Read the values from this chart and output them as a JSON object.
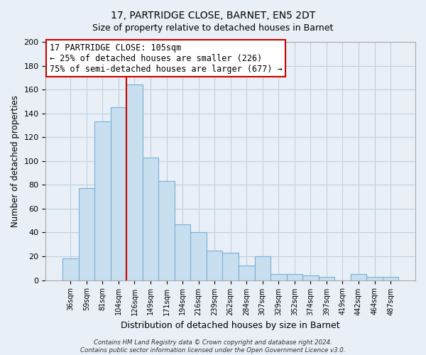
{
  "title": "17, PARTRIDGE CLOSE, BARNET, EN5 2DT",
  "subtitle": "Size of property relative to detached houses in Barnet",
  "xlabel": "Distribution of detached houses by size in Barnet",
  "ylabel": "Number of detached properties",
  "bar_labels": [
    "36sqm",
    "59sqm",
    "81sqm",
    "104sqm",
    "126sqm",
    "149sqm",
    "171sqm",
    "194sqm",
    "216sqm",
    "239sqm",
    "262sqm",
    "284sqm",
    "307sqm",
    "329sqm",
    "352sqm",
    "374sqm",
    "397sqm",
    "419sqm",
    "442sqm",
    "464sqm",
    "487sqm"
  ],
  "bar_values": [
    18,
    77,
    133,
    145,
    164,
    103,
    83,
    47,
    40,
    25,
    23,
    12,
    20,
    5,
    5,
    4,
    3,
    0,
    5,
    3,
    3
  ],
  "bar_color": "#c8dff0",
  "bar_edge_color": "#7aafd4",
  "vline_color": "#cc0000",
  "vline_pos": 3.5,
  "ylim": [
    0,
    200
  ],
  "yticks": [
    0,
    20,
    40,
    60,
    80,
    100,
    120,
    140,
    160,
    180,
    200
  ],
  "annotation_box_text": "17 PARTRIDGE CLOSE: 105sqm\n← 25% of detached houses are smaller (226)\n75% of semi-detached houses are larger (677) →",
  "footer_text": "Contains HM Land Registry data © Crown copyright and database right 2024.\nContains public sector information licensed under the Open Government Licence v3.0.",
  "background_color": "#e8eff6",
  "plot_bg_color": "#e8eff6",
  "grid_color": "#c0d0e0"
}
